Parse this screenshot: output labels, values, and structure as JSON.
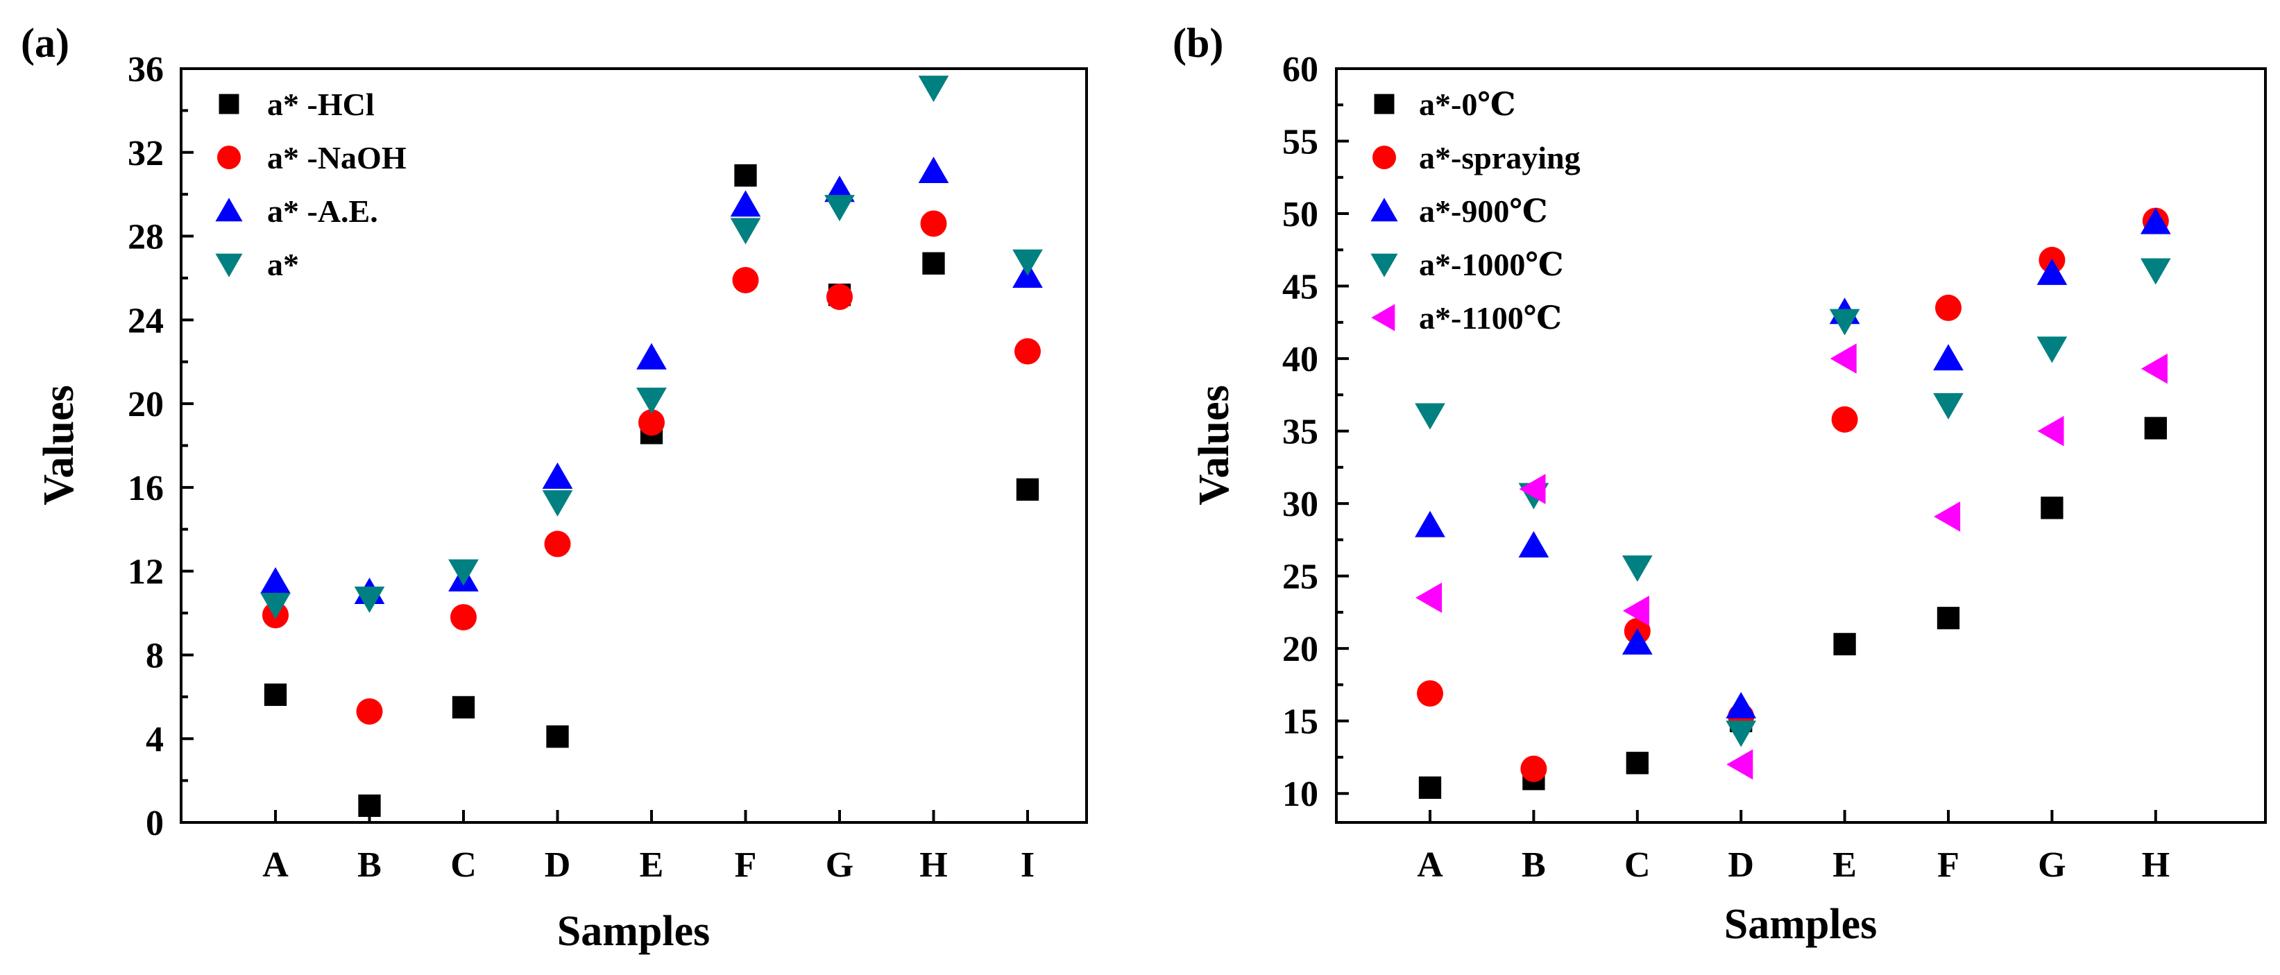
{
  "chart_data": [
    {
      "panel": "(a)",
      "type": "scatter",
      "categories": [
        "A",
        "B",
        "C",
        "D",
        "E",
        "F",
        "G",
        "H",
        "I"
      ],
      "xlabel": "Samples",
      "ylabel": "Values",
      "ylim": [
        0,
        36
      ],
      "yticks": [
        0,
        4,
        8,
        12,
        16,
        20,
        24,
        28,
        32,
        36
      ],
      "legend_position": "top-left",
      "series": [
        {
          "name": "a* -HCl",
          "marker": "square",
          "color": "#000000",
          "values": [
            6.1,
            0.8,
            5.5,
            4.1,
            18.6,
            30.9,
            25.2,
            26.7,
            15.9
          ]
        },
        {
          "name": "a* -NaOH",
          "marker": "circle",
          "color": "#ff0000",
          "values": [
            9.9,
            5.3,
            9.8,
            13.3,
            19.1,
            25.9,
            25.1,
            28.6,
            22.5
          ]
        },
        {
          "name": "a* -A.E.",
          "marker": "triangle-up",
          "color": "#0000ff",
          "values": [
            11.5,
            11.0,
            11.6,
            16.5,
            22.2,
            29.5,
            30.2,
            31.1,
            26.1
          ]
        },
        {
          "name": "a*",
          "marker": "triangle-down",
          "color": "#008080",
          "values": [
            10.4,
            10.7,
            12.0,
            15.3,
            20.2,
            28.3,
            29.4,
            35.1,
            26.8
          ]
        }
      ]
    },
    {
      "panel": "(b)",
      "type": "scatter",
      "categories": [
        "A",
        "B",
        "C",
        "D",
        "E",
        "F",
        "G",
        "H"
      ],
      "xlabel": "Samples",
      "ylabel": "Values",
      "ylim": [
        8,
        60
      ],
      "yticks": [
        10,
        15,
        20,
        25,
        30,
        35,
        40,
        45,
        50,
        55,
        60
      ],
      "legend_position": "top-left",
      "series": [
        {
          "name": "a*-0℃",
          "marker": "square",
          "color": "#000000",
          "values": [
            10.4,
            11.0,
            12.1,
            15.0,
            20.3,
            22.1,
            29.7,
            35.2
          ]
        },
        {
          "name": "a*-spraying",
          "marker": "circle",
          "color": "#ff0000",
          "values": [
            16.9,
            11.7,
            21.2,
            15.3,
            35.8,
            43.5,
            46.8,
            49.5
          ]
        },
        {
          "name": "a*-900℃",
          "marker": "triangle-up",
          "color": "#0000ff",
          "values": [
            28.5,
            27.1,
            20.4,
            16.0,
            43.2,
            40.0,
            45.9,
            49.4
          ]
        },
        {
          "name": "a*-1000℃",
          "marker": "triangle-down",
          "color": "#008080",
          "values": [
            36.1,
            30.6,
            25.6,
            14.2,
            42.6,
            36.8,
            40.7,
            46.1
          ]
        },
        {
          "name": "a*-1100℃",
          "marker": "triangle-left",
          "color": "#ff00ff",
          "values": [
            23.5,
            31.0,
            22.6,
            12.0,
            40.0,
            29.1,
            35.0,
            39.3
          ]
        }
      ]
    }
  ]
}
